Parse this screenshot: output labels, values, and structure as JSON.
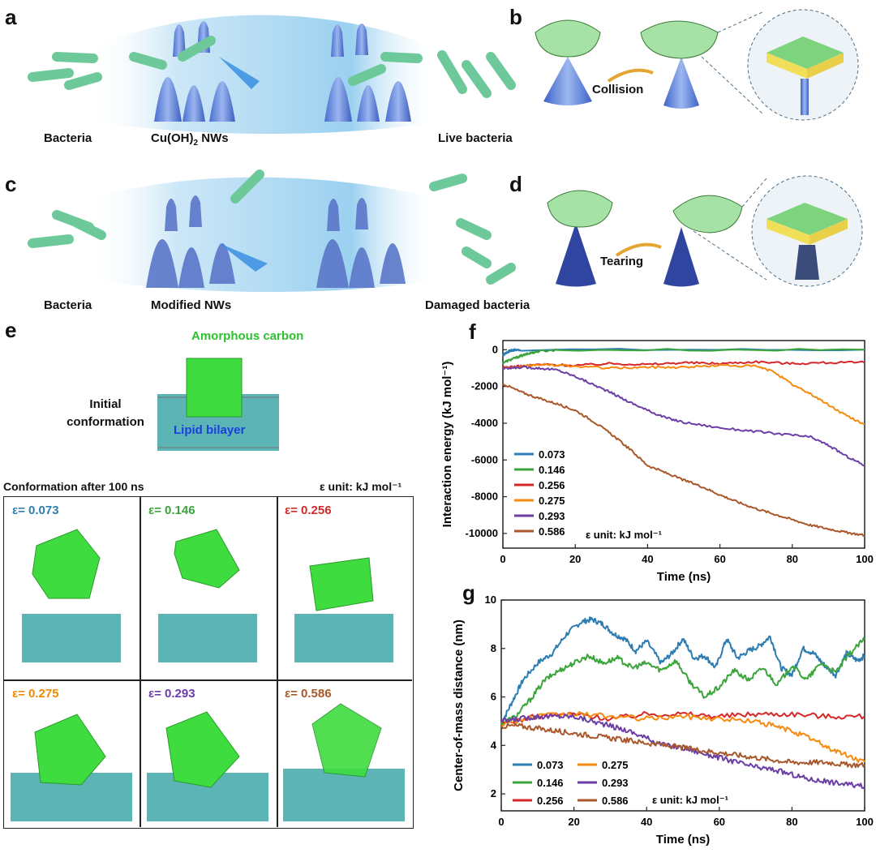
{
  "panels": {
    "a": {
      "label": "a",
      "captions": [
        "Bacteria",
        "Cu(OH)",
        "2",
        " NWs",
        "Live bacteria"
      ]
    },
    "b": {
      "label": "b",
      "arrow_label": "Collision"
    },
    "c": {
      "label": "c",
      "captions": [
        "Bacteria",
        "Modified NWs",
        "Damaged bacteria"
      ]
    },
    "d": {
      "label": "d",
      "arrow_label": "Tearing"
    },
    "e": {
      "label": "e",
      "top_label": "Amorphous carbon",
      "initial_label_1": "Initial",
      "initial_label_2": "conformation",
      "bilayer_label": "Lipid bilayer",
      "after_label": "Conformation after 100 ns",
      "unit_label": "ε unit: kJ mol⁻¹",
      "cells": [
        {
          "text": "ε= 0.073",
          "color": "#2e7fb0"
        },
        {
          "text": "ε= 0.146",
          "color": "#3aa43a"
        },
        {
          "text": "ε= 0.256",
          "color": "#d12a2a"
        },
        {
          "text": "ε= 0.275",
          "color": "#f08a00"
        },
        {
          "text": "ε= 0.293",
          "color": "#6a3ca8"
        },
        {
          "text": "ε= 0.586",
          "color": "#a8582a"
        }
      ]
    },
    "f": {
      "label": "f"
    },
    "g": {
      "label": "g"
    }
  },
  "colors": {
    "s073": "#2d7db2",
    "s146": "#3ba43b",
    "s256": "#d62728",
    "s275": "#f68b0f",
    "s293": "#6b3fa6",
    "s586": "#a9582c",
    "carbon": "#3fdc3f",
    "bilayer": "#5db4b4",
    "nanowire": "#6f8fd8",
    "bacteria": "#6dc99a"
  },
  "chart_data": [
    {
      "type": "line",
      "panel": "f",
      "xlabel": "Time (ns)",
      "ylabel": "Interaction energy (kJ mol⁻¹)",
      "xlim": [
        0,
        100
      ],
      "ylim": [
        -10800,
        500
      ],
      "xticks": [
        "0",
        "20",
        "40",
        "60",
        "80",
        "100"
      ],
      "yticks": [
        "0",
        "-2000",
        "-4000",
        "-6000",
        "-8000",
        "-10000"
      ],
      "legend_title": "ε unit: kJ mol⁻¹",
      "legend_entries": [
        "0.073",
        "0.146",
        "0.256",
        "0.275",
        "0.293",
        "0.586"
      ],
      "legend_position": "bottom-left",
      "series": [
        {
          "name": "0.073",
          "color": "#2d7db2",
          "x": [
            0,
            1,
            2,
            3,
            5,
            100
          ],
          "y": [
            -300,
            -150,
            -60,
            -20,
            0,
            0
          ]
        },
        {
          "name": "0.146",
          "color": "#3ba43b",
          "x": [
            0,
            2,
            4,
            6,
            8,
            10,
            15,
            100
          ],
          "y": [
            -700,
            -550,
            -400,
            -280,
            -160,
            -80,
            -10,
            0
          ]
        },
        {
          "name": "0.256",
          "color": "#d62728",
          "x": [
            0,
            5,
            10,
            20,
            30,
            40,
            50,
            60,
            70,
            80,
            90,
            100
          ],
          "y": [
            -950,
            -900,
            -800,
            -850,
            -750,
            -800,
            -700,
            -750,
            -650,
            -750,
            -700,
            -700
          ]
        },
        {
          "name": "0.275",
          "color": "#f68b0f",
          "x": [
            0,
            5,
            10,
            20,
            30,
            40,
            50,
            60,
            70,
            75,
            80,
            85,
            90,
            95,
            100
          ],
          "y": [
            -1000,
            -950,
            -800,
            -900,
            -1000,
            -950,
            -950,
            -850,
            -900,
            -1200,
            -1900,
            -2400,
            -3000,
            -3600,
            -4050
          ]
        },
        {
          "name": "0.293",
          "color": "#6b3fa6",
          "x": [
            0,
            5,
            10,
            15,
            20,
            25,
            30,
            35,
            40,
            45,
            50,
            60,
            70,
            80,
            85,
            90,
            95,
            100
          ],
          "y": [
            -1050,
            -950,
            -1000,
            -1100,
            -1450,
            -1900,
            -2350,
            -2850,
            -3300,
            -3700,
            -3950,
            -4250,
            -4450,
            -4650,
            -4750,
            -5200,
            -5800,
            -6300
          ]
        },
        {
          "name": "0.586",
          "color": "#a9582c",
          "x": [
            0,
            5,
            10,
            15,
            20,
            25,
            30,
            35,
            40,
            45,
            50,
            55,
            60,
            65,
            70,
            75,
            80,
            85,
            90,
            95,
            100
          ],
          "y": [
            -1850,
            -2300,
            -2650,
            -2950,
            -3300,
            -3900,
            -4600,
            -5400,
            -6300,
            -6700,
            -7100,
            -7450,
            -7900,
            -8300,
            -8650,
            -8950,
            -9250,
            -9550,
            -9750,
            -9950,
            -10100
          ]
        }
      ]
    },
    {
      "type": "line",
      "panel": "g",
      "xlabel": "Time (ns)",
      "ylabel": "Center-of-mass distance (nm)",
      "xlim": [
        0,
        100
      ],
      "ylim": [
        1.3,
        10
      ],
      "xticks": [
        "0",
        "20",
        "40",
        "60",
        "80",
        "100"
      ],
      "yticks": [
        "2",
        "4",
        "6",
        "8",
        "10"
      ],
      "legend_title": "ε unit: kJ mol⁻¹",
      "legend_entries": [
        "0.073",
        "0.275",
        "0.146",
        "0.293",
        "0.256",
        "0.586"
      ],
      "legend_position": "bottom-left",
      "series": [
        {
          "name": "0.073",
          "color": "#2d7db2",
          "x": [
            0,
            3,
            6,
            10,
            14,
            18,
            22,
            25,
            28,
            31,
            34,
            37,
            40,
            44,
            47,
            50,
            53,
            56,
            59,
            62,
            65,
            68,
            71,
            74,
            77,
            80,
            83,
            86,
            89,
            92,
            95,
            98,
            100
          ],
          "y": [
            4.9,
            5.8,
            6.7,
            7.4,
            7.8,
            8.6,
            9.1,
            9.2,
            9.0,
            8.6,
            8.4,
            7.9,
            8.3,
            7.4,
            7.8,
            8.4,
            7.6,
            7.7,
            7.2,
            8.4,
            7.6,
            7.9,
            8.1,
            8.5,
            7.2,
            6.9,
            8.0,
            7.8,
            7.3,
            6.9,
            7.8,
            7.5,
            7.7
          ]
        },
        {
          "name": "0.146",
          "color": "#3ba43b",
          "x": [
            0,
            4,
            8,
            12,
            16,
            20,
            24,
            28,
            32,
            36,
            40,
            44,
            48,
            52,
            56,
            60,
            64,
            68,
            72,
            76,
            80,
            84,
            88,
            92,
            96,
            100
          ],
          "y": [
            4.9,
            5.2,
            5.9,
            6.7,
            7.1,
            7.4,
            7.7,
            7.4,
            7.6,
            7.2,
            7.4,
            7.1,
            7.5,
            6.6,
            6.0,
            6.4,
            7.1,
            6.7,
            7.2,
            6.5,
            7.3,
            6.7,
            7.4,
            7.0,
            7.8,
            8.4
          ]
        },
        {
          "name": "0.256",
          "color": "#d62728",
          "x": [
            0,
            10,
            20,
            30,
            40,
            50,
            60,
            70,
            80,
            90,
            100
          ],
          "y": [
            4.9,
            5.2,
            5.3,
            5.1,
            5.3,
            5.3,
            5.2,
            5.3,
            5.3,
            5.2,
            5.2
          ]
        },
        {
          "name": "0.275",
          "color": "#f68b0f",
          "x": [
            0,
            10,
            20,
            30,
            40,
            50,
            60,
            70,
            75,
            80,
            85,
            90,
            95,
            100
          ],
          "y": [
            4.9,
            5.2,
            5.3,
            5.2,
            5.1,
            5.2,
            5.1,
            5.0,
            4.8,
            4.6,
            4.3,
            3.9,
            3.6,
            3.3
          ]
        },
        {
          "name": "0.293",
          "color": "#6b3fa6",
          "x": [
            0,
            5,
            10,
            15,
            20,
            25,
            30,
            35,
            40,
            45,
            50,
            55,
            60,
            65,
            70,
            75,
            80,
            85,
            90,
            95,
            100
          ],
          "y": [
            5.0,
            5.1,
            5.2,
            5.2,
            5.2,
            5.0,
            4.8,
            4.6,
            4.3,
            4.0,
            3.9,
            3.7,
            3.5,
            3.3,
            3.1,
            3.0,
            2.8,
            2.6,
            2.5,
            2.4,
            2.3
          ]
        },
        {
          "name": "0.586",
          "color": "#a9582c",
          "x": [
            0,
            5,
            10,
            15,
            20,
            25,
            30,
            35,
            40,
            45,
            50,
            55,
            60,
            65,
            70,
            75,
            80,
            85,
            90,
            95,
            100
          ],
          "y": [
            4.8,
            4.8,
            4.7,
            4.6,
            4.5,
            4.4,
            4.3,
            4.2,
            4.1,
            4.0,
            3.9,
            3.8,
            3.7,
            3.6,
            3.5,
            3.4,
            3.3,
            3.3,
            3.3,
            3.2,
            3.2
          ]
        }
      ]
    }
  ]
}
